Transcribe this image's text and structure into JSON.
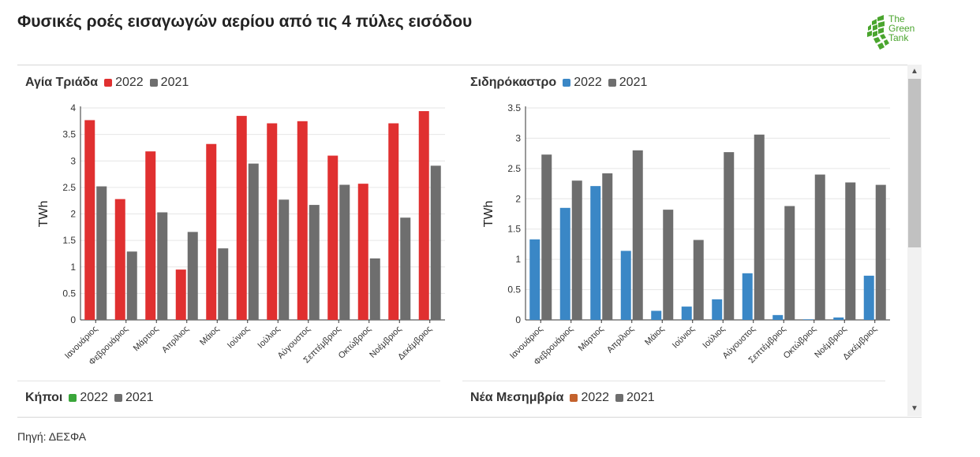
{
  "header": {
    "title": "Φυσικές ροές εισαγωγών αερίου από τις 4 πύλες εισόδου"
  },
  "logo": {
    "line1": "The",
    "line2": "Green",
    "line3": "Tank"
  },
  "source": "Πηγή: ΔΕΣΦΑ",
  "colors": {
    "y2021": "#6e6e6e",
    "agia": "#e03030",
    "sidiro": "#3a87c6",
    "kipoi": "#3aa63a",
    "nea": "#c4622d"
  },
  "chart_data": [
    {
      "type": "bar",
      "title": "Αγία Τριάδα",
      "legend": [
        "2022",
        "2021"
      ],
      "ylabel": "TWh",
      "ylim": [
        0,
        4
      ],
      "yticks": [
        "0",
        "0.5",
        "1",
        "1.5",
        "2",
        "2.5",
        "3",
        "3.5",
        "4"
      ],
      "categories": [
        "Ιανουάριος",
        "Φεβρουάριος",
        "Μάρτιος",
        "Απρίλιος",
        "Μάιος",
        "Ιούνιος",
        "Ιούλιος",
        "Αύγουστος",
        "Σεπτέμβριος",
        "Οκτώβριος",
        "Νοέμβριος",
        "Δεκέμβριος"
      ],
      "series": [
        {
          "name": "2022",
          "values": [
            3.77,
            2.28,
            3.18,
            0.95,
            3.32,
            3.85,
            3.71,
            3.75,
            3.1,
            2.57,
            3.71,
            3.94
          ]
        },
        {
          "name": "2021",
          "values": [
            2.52,
            1.29,
            2.03,
            1.66,
            1.35,
            2.95,
            2.27,
            2.17,
            2.55,
            1.16,
            1.93,
            2.91
          ]
        }
      ]
    },
    {
      "type": "bar",
      "title": "Σιδηρόκαστρο",
      "legend": [
        "2022",
        "2021"
      ],
      "ylabel": "TWh",
      "ylim": [
        0,
        3.5
      ],
      "yticks": [
        "0",
        "0.5",
        "1",
        "1.5",
        "2",
        "2.5",
        "3",
        "3.5"
      ],
      "categories": [
        "Ιανουάριος",
        "Φεβρουάριος",
        "Μάρτιος",
        "Απρίλιος",
        "Μάιος",
        "Ιούνιος",
        "Ιούλιος",
        "Αύγουστος",
        "Σεπτέμβριος",
        "Οκτώβριος",
        "Νοέμβριος",
        "Δεκέμβριος"
      ],
      "series": [
        {
          "name": "2022",
          "values": [
            1.33,
            1.85,
            2.21,
            1.14,
            0.15,
            0.22,
            0.34,
            0.77,
            0.08,
            0.01,
            0.04,
            0.73
          ]
        },
        {
          "name": "2021",
          "values": [
            2.73,
            2.3,
            2.42,
            2.8,
            1.82,
            1.32,
            2.77,
            3.06,
            1.88,
            2.4,
            2.27,
            2.23
          ]
        }
      ]
    },
    {
      "type": "bar",
      "title": "Κήποι",
      "legend": [
        "2022",
        "2021"
      ],
      "categories": [],
      "series": []
    },
    {
      "type": "bar",
      "title": "Νέα Μεσημβρία",
      "legend": [
        "2022",
        "2021"
      ],
      "categories": [],
      "series": []
    }
  ]
}
